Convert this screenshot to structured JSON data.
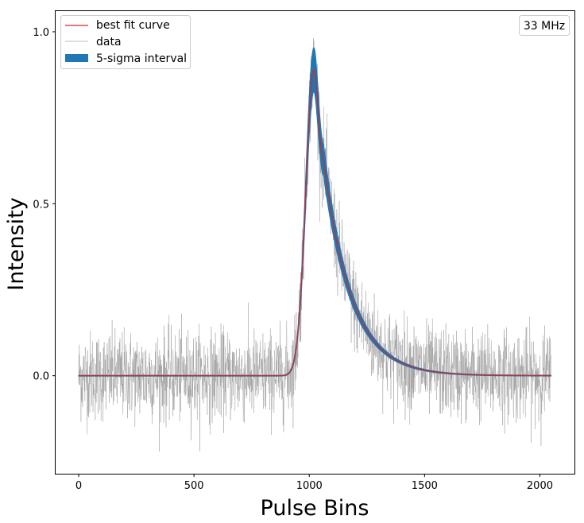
{
  "chart_data": {
    "type": "line",
    "title": "",
    "xlabel": "Pulse Bins",
    "ylabel": "Intensity",
    "xlim": [
      -100,
      2150
    ],
    "ylim": [
      -0.285,
      1.06
    ],
    "xticks": [
      0,
      500,
      1000,
      1500,
      2000
    ],
    "xtick_labels": [
      "0",
      "500",
      "1000",
      "1500",
      "2000"
    ],
    "yticks": [
      0.0,
      0.5,
      1.0
    ],
    "ytick_labels": [
      "0.0",
      "0.5",
      "1.0"
    ],
    "grid": false,
    "legend_position": "top-left",
    "annotation": "33 MHz",
    "series": [
      {
        "name": "best fit curve",
        "kind": "line",
        "color": "#d62728",
        "model": "gaussian-convolved-exponential",
        "x_range": [
          0,
          2048
        ],
        "baseline": 0.0,
        "peak_x": 1020,
        "peak_y": 0.89,
        "rise_sigma": 35,
        "tau": 120
      },
      {
        "name": "data",
        "kind": "noisy-line",
        "color": "#999999",
        "x_range": [
          0,
          2048
        ],
        "noise_sigma": 0.065,
        "noise_min": -0.22,
        "noise_max": 1.0
      },
      {
        "name": "5-sigma interval",
        "kind": "band",
        "color": "#1f77b4",
        "half_width_fraction": 0.07
      }
    ]
  }
}
